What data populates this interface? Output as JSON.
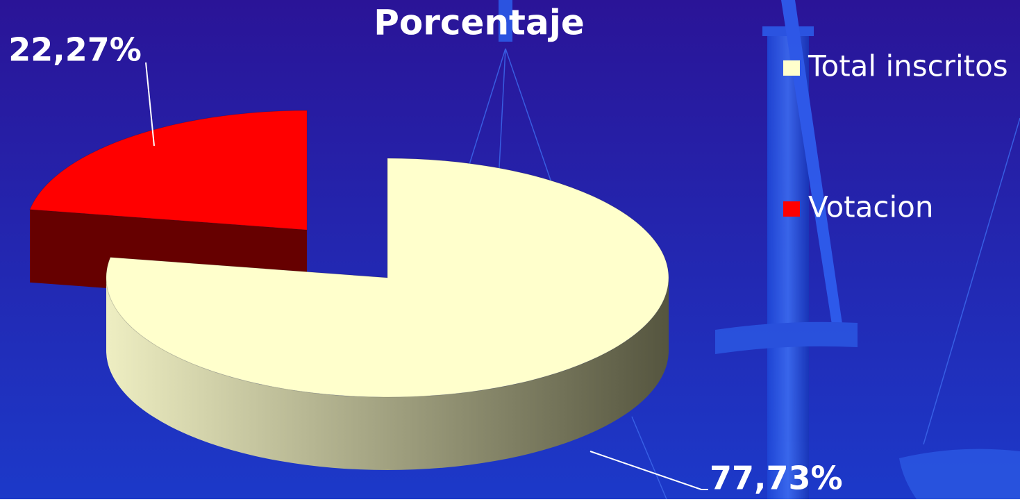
{
  "chart_data": {
    "type": "pie3d",
    "title": "Porcentaje",
    "categories": [
      "Total inscritos",
      "Votacion"
    ],
    "values": [
      77.73,
      22.27
    ],
    "value_labels": [
      "77,73%",
      "22,27%"
    ],
    "colors": [
      "#ffffcc",
      "#ff0000"
    ],
    "legend": "right"
  }
}
